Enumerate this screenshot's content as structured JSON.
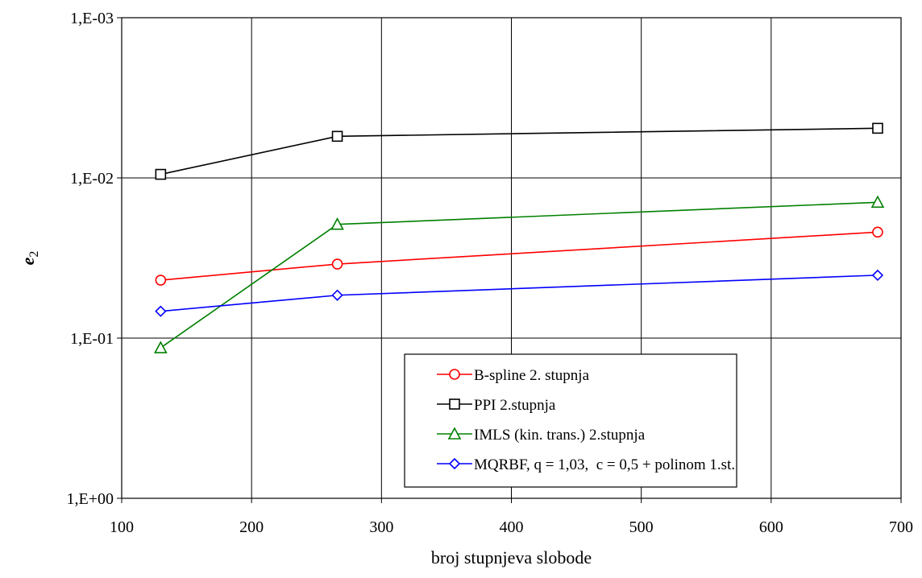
{
  "chart_data": {
    "type": "line",
    "xlabel": "broj stupnjeva slobode",
    "ylabel": "e",
    "ylabel_sub": "2",
    "xlim": [
      100,
      700
    ],
    "ylim": [
      1,
      0.001
    ],
    "yscale": "log",
    "y_reversed": true,
    "grid": true,
    "legend_position": "bottom-right",
    "x_ticks": [
      100,
      200,
      300,
      400,
      500,
      600,
      700
    ],
    "y_ticks": [
      {
        "value": 0.001,
        "label": "1,E-03"
      },
      {
        "value": 0.01,
        "label": "1,E-02"
      },
      {
        "value": 0.1,
        "label": "1,E-01"
      },
      {
        "value": 1,
        "label": "1,E+00"
      }
    ],
    "series": [
      {
        "name": "B-spline 2. stupnja",
        "color": "#ff0000",
        "marker": "circle",
        "x": [
          130,
          266,
          682
        ],
        "y": [
          0.0435,
          0.0345,
          0.0218
        ]
      },
      {
        "name": "PPI 2.stupnja",
        "color": "#000000",
        "marker": "square",
        "x": [
          130,
          266,
          682
        ],
        "y": [
          0.0095,
          0.0055,
          0.0049
        ]
      },
      {
        "name": "IMLS (kin. trans.) 2.stupnja",
        "color": "#008000",
        "marker": "triangle",
        "x": [
          130,
          266,
          682
        ],
        "y": [
          0.115,
          0.0195,
          0.0142
        ]
      },
      {
        "name": "MQRBF, q = 1,03,  c = 0,5 + polinom 1.st.",
        "color": "#0000ff",
        "marker": "diamond",
        "x": [
          130,
          266,
          682
        ],
        "y": [
          0.068,
          0.054,
          0.0405
        ]
      }
    ]
  }
}
